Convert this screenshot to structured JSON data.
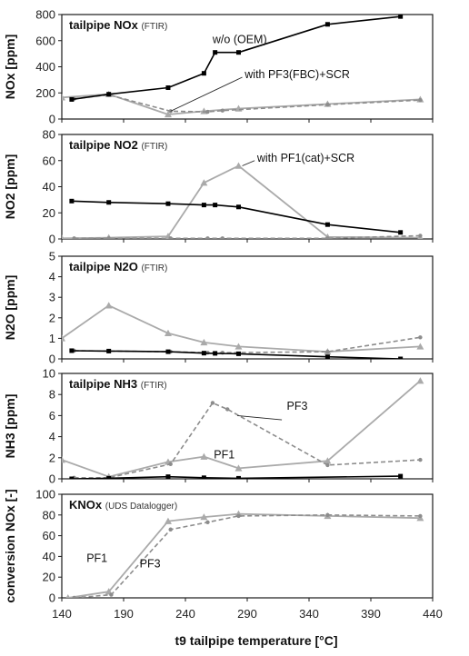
{
  "x_axis": {
    "label": "t9 tailpipe temperature [°C]",
    "range": [
      140,
      440
    ],
    "ticks": [
      140,
      190,
      240,
      290,
      340,
      390,
      440
    ]
  },
  "chart_data": [
    {
      "type": "line",
      "title": "tailpipe NOx",
      "subtitle": "(FTIR)",
      "ylabel": "NOx [ppm]",
      "ylim": [
        0,
        800
      ],
      "yticks": [
        0,
        200,
        400,
        600,
        800
      ],
      "series": [
        {
          "style": "oem",
          "x": [
            148,
            178,
            226,
            255,
            264,
            283,
            355,
            414
          ],
          "y": [
            150,
            190,
            240,
            350,
            510,
            510,
            725,
            785
          ]
        },
        {
          "style": "pf3",
          "x": [
            150,
            178,
            228,
            258,
            270,
            355,
            430
          ],
          "y": [
            155,
            185,
            60,
            55,
            65,
            110,
            145
          ]
        },
        {
          "style": "pf1",
          "x": [
            140,
            178,
            226,
            255,
            283,
            355,
            430
          ],
          "y": [
            165,
            190,
            35,
            60,
            80,
            115,
            150
          ]
        }
      ],
      "annotations": [
        {
          "text": "w/o (OEM)",
          "x": 262,
          "y": 610
        },
        {
          "text": "with PF3(FBC)+SCR",
          "x": 288,
          "y": 340,
          "arrow_to": [
            228,
            60
          ],
          "arrow_from": [
            286,
            320
          ]
        }
      ]
    },
    {
      "type": "line",
      "title": "tailpipe NO2",
      "subtitle": "(FTIR)",
      "ylabel": "NO2 [ppm]",
      "ylim": [
        0,
        80
      ],
      "yticks": [
        0,
        20,
        40,
        60,
        80
      ],
      "series": [
        {
          "style": "oem",
          "x": [
            148,
            178,
            226,
            255,
            264,
            283,
            355,
            414
          ],
          "y": [
            29,
            28,
            27,
            26,
            26,
            24.5,
            11,
            5
          ]
        },
        {
          "style": "pf3",
          "x": [
            150,
            178,
            228,
            258,
            270,
            355,
            430
          ],
          "y": [
            0.5,
            0.5,
            0.5,
            0.5,
            0.5,
            0.5,
            2.5
          ]
        },
        {
          "style": "pf1",
          "x": [
            140,
            178,
            226,
            255,
            283,
            355,
            430
          ],
          "y": [
            0.5,
            1,
            2,
            43,
            56,
            1.5,
            1
          ]
        }
      ],
      "annotations": [
        {
          "text": "with PF1(cat)+SCR",
          "x": 298,
          "y": 62,
          "arrow_to": [
            286,
            56
          ],
          "arrow_from": [
            296,
            60
          ]
        }
      ]
    },
    {
      "type": "line",
      "title": "tailpipe N2O",
      "subtitle": "(FTIR)",
      "ylabel": "N2O [ppm]",
      "ylim": [
        0,
        5
      ],
      "yticks": [
        0,
        1,
        2,
        3,
        4,
        5
      ],
      "series": [
        {
          "style": "oem",
          "x": [
            148,
            178,
            226,
            255,
            264,
            283,
            355,
            414
          ],
          "y": [
            0.4,
            0.38,
            0.35,
            0.28,
            0.27,
            0.25,
            0.1,
            0
          ]
        },
        {
          "style": "pf3",
          "x": [
            150,
            178,
            228,
            258,
            270,
            355,
            430
          ],
          "y": [
            0.4,
            0.38,
            0.35,
            0.3,
            0.3,
            0.35,
            1.05
          ]
        },
        {
          "style": "pf1",
          "x": [
            140,
            178,
            226,
            255,
            283,
            355,
            430
          ],
          "y": [
            1,
            2.6,
            1.25,
            0.8,
            0.6,
            0.35,
            0.6
          ]
        }
      ],
      "annotations": []
    },
    {
      "type": "line",
      "title": "tailpipe NH3",
      "subtitle": "(FTIR)",
      "ylabel": "NH3 [ppm]",
      "ylim": [
        0,
        10
      ],
      "yticks": [
        0,
        2,
        4,
        6,
        8,
        10
      ],
      "series": [
        {
          "style": "oem",
          "x": [
            148,
            178,
            226,
            255,
            283,
            414
          ],
          "y": [
            0,
            0.05,
            0.2,
            0.1,
            0.05,
            0.25
          ]
        },
        {
          "style": "pf3",
          "x": [
            150,
            178,
            228,
            262,
            274,
            355,
            430
          ],
          "y": [
            0.1,
            0.1,
            1.4,
            7.2,
            6.6,
            1.3,
            1.8
          ]
        },
        {
          "style": "pf1",
          "x": [
            140,
            178,
            226,
            255,
            283,
            355,
            430
          ],
          "y": [
            1.8,
            0.2,
            1.6,
            2.1,
            1,
            1.7,
            9.3
          ]
        }
      ],
      "annotations": [
        {
          "text": "PF3",
          "x": 322,
          "y": 6.9,
          "arrow_to": [
            282,
            6
          ],
          "arrow_from": [
            318,
            5.6
          ]
        },
        {
          "text": "PF1",
          "x": 263,
          "y": 2.3
        }
      ]
    },
    {
      "type": "line",
      "title": "KNOx",
      "subtitle": "(UDS Datalogger)",
      "ylabel": "conversion NOx [-]",
      "ylim": [
        0,
        100
      ],
      "yticks": [
        0,
        20,
        40,
        60,
        80,
        100
      ],
      "series": [
        {
          "style": "oem",
          "x": [],
          "y": []
        },
        {
          "style": "pf3",
          "x": [
            150,
            180,
            228,
            258,
            283,
            355,
            430
          ],
          "y": [
            0,
            3,
            66,
            73,
            79,
            80,
            79
          ]
        },
        {
          "style": "pf1",
          "x": [
            145,
            178,
            226,
            255,
            283,
            355,
            430
          ],
          "y": [
            0,
            6,
            74,
            78,
            81,
            79,
            77
          ]
        }
      ],
      "annotations": [
        {
          "text": "PF1",
          "x": 160,
          "y": 38
        },
        {
          "text": "PF3",
          "x": 203,
          "y": 33
        }
      ]
    }
  ],
  "colors": {
    "oem": "#000000",
    "pf3": "#8c8c8c",
    "pf1": "#aaaaaa",
    "frame": "#1a1a1a"
  }
}
